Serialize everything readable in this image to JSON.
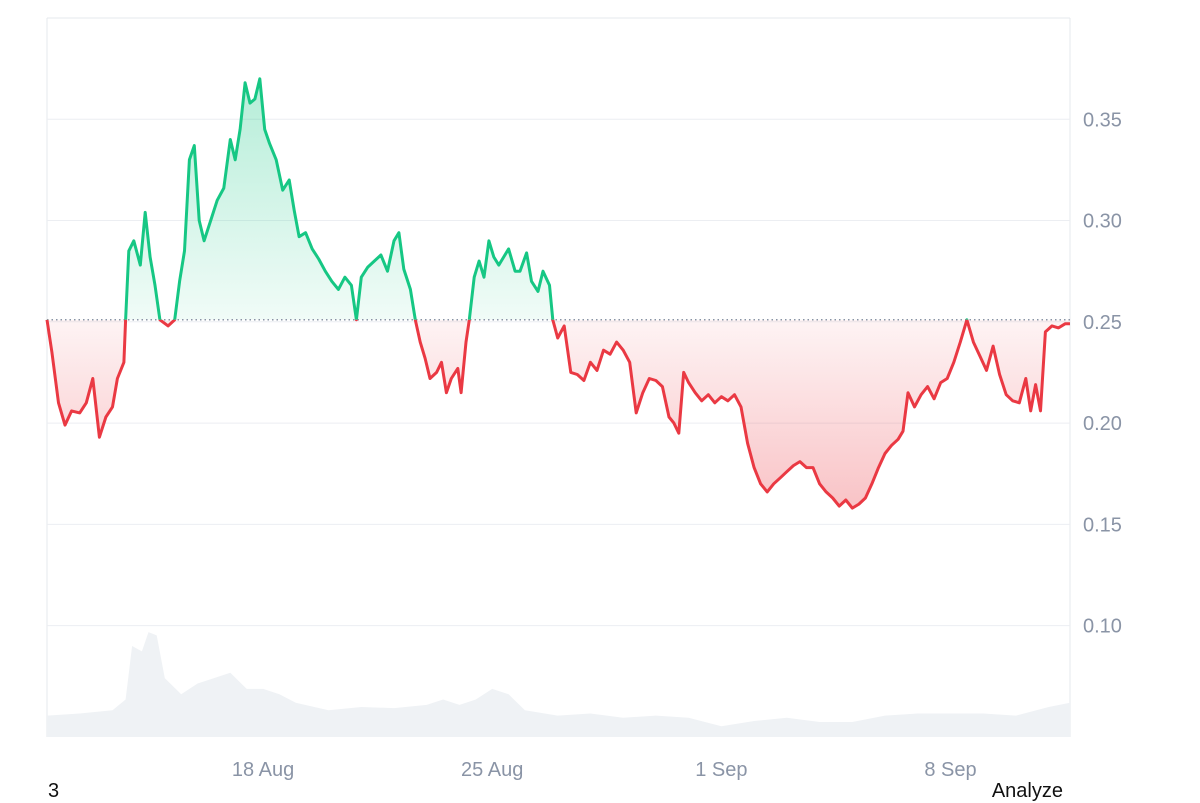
{
  "chart_data": {
    "type": "line",
    "title": "",
    "xlabel": "",
    "ylabel": "",
    "baseline": 0.251,
    "ylim": [
      0.045,
      0.4
    ],
    "x_ticks": [
      {
        "label": "18 Aug",
        "day": 18
      },
      {
        "label": "25 Aug",
        "day": 25
      },
      {
        "label": "1 Sep",
        "day": 32
      },
      {
        "label": "8 Sep",
        "day": 39
      }
    ],
    "x_range_days": [
      11.4,
      42.65
    ],
    "y_ticks": [
      {
        "label": "0.35",
        "value": 0.35
      },
      {
        "label": "0.30",
        "value": 0.3
      },
      {
        "label": "0.25",
        "value": 0.25
      },
      {
        "label": "0.20",
        "value": 0.2
      },
      {
        "label": "0.15",
        "value": 0.15
      },
      {
        "label": "0.10",
        "value": 0.1
      }
    ],
    "series": [
      {
        "points": [
          [
            11.4,
            0.251
          ],
          [
            11.55,
            0.235
          ],
          [
            11.75,
            0.21
          ],
          [
            11.95,
            0.199
          ],
          [
            12.15,
            0.206
          ],
          [
            12.4,
            0.205
          ],
          [
            12.6,
            0.21
          ],
          [
            12.8,
            0.222
          ],
          [
            13.0,
            0.193
          ],
          [
            13.2,
            0.203
          ],
          [
            13.4,
            0.208
          ],
          [
            13.55,
            0.222
          ],
          [
            13.75,
            0.23
          ],
          [
            13.8,
            0.251
          ],
          [
            13.9,
            0.285
          ],
          [
            14.05,
            0.29
          ],
          [
            14.25,
            0.278
          ],
          [
            14.4,
            0.304
          ],
          [
            14.55,
            0.282
          ],
          [
            14.7,
            0.268
          ],
          [
            14.85,
            0.251
          ],
          [
            15.1,
            0.248
          ],
          [
            15.3,
            0.251
          ],
          [
            15.45,
            0.27
          ],
          [
            15.6,
            0.285
          ],
          [
            15.75,
            0.33
          ],
          [
            15.9,
            0.337
          ],
          [
            16.05,
            0.3
          ],
          [
            16.2,
            0.29
          ],
          [
            16.4,
            0.3
          ],
          [
            16.6,
            0.31
          ],
          [
            16.8,
            0.316
          ],
          [
            17.0,
            0.34
          ],
          [
            17.15,
            0.33
          ],
          [
            17.3,
            0.345
          ],
          [
            17.45,
            0.368
          ],
          [
            17.6,
            0.358
          ],
          [
            17.75,
            0.36
          ],
          [
            17.9,
            0.37
          ],
          [
            18.05,
            0.345
          ],
          [
            18.2,
            0.338
          ],
          [
            18.4,
            0.33
          ],
          [
            18.6,
            0.315
          ],
          [
            18.8,
            0.32
          ],
          [
            18.95,
            0.305
          ],
          [
            19.1,
            0.292
          ],
          [
            19.3,
            0.294
          ],
          [
            19.5,
            0.286
          ],
          [
            19.7,
            0.281
          ],
          [
            19.9,
            0.275
          ],
          [
            20.1,
            0.27
          ],
          [
            20.3,
            0.266
          ],
          [
            20.5,
            0.272
          ],
          [
            20.7,
            0.268
          ],
          [
            20.85,
            0.251
          ],
          [
            21.0,
            0.272
          ],
          [
            21.2,
            0.277
          ],
          [
            21.4,
            0.28
          ],
          [
            21.6,
            0.283
          ],
          [
            21.8,
            0.275
          ],
          [
            22.0,
            0.29
          ],
          [
            22.15,
            0.294
          ],
          [
            22.3,
            0.276
          ],
          [
            22.5,
            0.266
          ],
          [
            22.65,
            0.251
          ],
          [
            22.8,
            0.24
          ],
          [
            22.95,
            0.232
          ],
          [
            23.1,
            0.222
          ],
          [
            23.3,
            0.225
          ],
          [
            23.45,
            0.23
          ],
          [
            23.6,
            0.215
          ],
          [
            23.75,
            0.222
          ],
          [
            23.95,
            0.227
          ],
          [
            24.05,
            0.215
          ],
          [
            24.2,
            0.24
          ],
          [
            24.3,
            0.251
          ],
          [
            24.45,
            0.272
          ],
          [
            24.6,
            0.28
          ],
          [
            24.75,
            0.272
          ],
          [
            24.9,
            0.29
          ],
          [
            25.05,
            0.282
          ],
          [
            25.2,
            0.278
          ],
          [
            25.35,
            0.282
          ],
          [
            25.5,
            0.286
          ],
          [
            25.7,
            0.275
          ],
          [
            25.85,
            0.275
          ],
          [
            26.05,
            0.284
          ],
          [
            26.2,
            0.27
          ],
          [
            26.4,
            0.265
          ],
          [
            26.55,
            0.275
          ],
          [
            26.75,
            0.268
          ],
          [
            26.85,
            0.251
          ],
          [
            27.0,
            0.242
          ],
          [
            27.2,
            0.248
          ],
          [
            27.4,
            0.225
          ],
          [
            27.6,
            0.224
          ],
          [
            27.8,
            0.221
          ],
          [
            28.0,
            0.23
          ],
          [
            28.2,
            0.226
          ],
          [
            28.4,
            0.236
          ],
          [
            28.6,
            0.234
          ],
          [
            28.8,
            0.24
          ],
          [
            29.0,
            0.236
          ],
          [
            29.2,
            0.23
          ],
          [
            29.4,
            0.205
          ],
          [
            29.6,
            0.215
          ],
          [
            29.8,
            0.222
          ],
          [
            30.0,
            0.221
          ],
          [
            30.2,
            0.218
          ],
          [
            30.4,
            0.203
          ],
          [
            30.55,
            0.2
          ],
          [
            30.7,
            0.195
          ],
          [
            30.85,
            0.225
          ],
          [
            31.0,
            0.22
          ],
          [
            31.2,
            0.215
          ],
          [
            31.4,
            0.211
          ],
          [
            31.6,
            0.214
          ],
          [
            31.8,
            0.21
          ],
          [
            32.0,
            0.213
          ],
          [
            32.2,
            0.211
          ],
          [
            32.4,
            0.214
          ],
          [
            32.6,
            0.208
          ],
          [
            32.8,
            0.19
          ],
          [
            33.0,
            0.178
          ],
          [
            33.2,
            0.17
          ],
          [
            33.4,
            0.166
          ],
          [
            33.6,
            0.17
          ],
          [
            33.8,
            0.173
          ],
          [
            34.0,
            0.176
          ],
          [
            34.2,
            0.179
          ],
          [
            34.4,
            0.181
          ],
          [
            34.6,
            0.178
          ],
          [
            34.8,
            0.178
          ],
          [
            35.0,
            0.17
          ],
          [
            35.2,
            0.166
          ],
          [
            35.4,
            0.163
          ],
          [
            35.6,
            0.159
          ],
          [
            35.8,
            0.162
          ],
          [
            36.0,
            0.158
          ],
          [
            36.2,
            0.16
          ],
          [
            36.4,
            0.163
          ],
          [
            36.6,
            0.17
          ],
          [
            36.8,
            0.178
          ],
          [
            37.0,
            0.185
          ],
          [
            37.2,
            0.189
          ],
          [
            37.4,
            0.192
          ],
          [
            37.55,
            0.196
          ],
          [
            37.7,
            0.215
          ],
          [
            37.9,
            0.208
          ],
          [
            38.1,
            0.214
          ],
          [
            38.3,
            0.218
          ],
          [
            38.5,
            0.212
          ],
          [
            38.7,
            0.22
          ],
          [
            38.9,
            0.222
          ],
          [
            39.1,
            0.23
          ],
          [
            39.3,
            0.24
          ],
          [
            39.5,
            0.251
          ],
          [
            39.7,
            0.24
          ],
          [
            39.9,
            0.233
          ],
          [
            40.1,
            0.226
          ],
          [
            40.3,
            0.238
          ],
          [
            40.5,
            0.224
          ],
          [
            40.7,
            0.214
          ],
          [
            40.9,
            0.211
          ],
          [
            41.1,
            0.21
          ],
          [
            41.3,
            0.222
          ],
          [
            41.45,
            0.206
          ],
          [
            41.6,
            0.219
          ],
          [
            41.75,
            0.206
          ],
          [
            41.9,
            0.245
          ],
          [
            42.1,
            0.248
          ],
          [
            42.3,
            0.247
          ],
          [
            42.5,
            0.249
          ],
          [
            42.65,
            0.249
          ]
        ]
      }
    ],
    "volume": [
      [
        11.4,
        0.2
      ],
      [
        12.4,
        0.22
      ],
      [
        13.4,
        0.25
      ],
      [
        13.8,
        0.35
      ],
      [
        14.0,
        0.85
      ],
      [
        14.3,
        0.8
      ],
      [
        14.5,
        0.98
      ],
      [
        14.75,
        0.95
      ],
      [
        15.0,
        0.55
      ],
      [
        15.5,
        0.4
      ],
      [
        16.0,
        0.5
      ],
      [
        16.5,
        0.55
      ],
      [
        17.0,
        0.6
      ],
      [
        17.5,
        0.45
      ],
      [
        18.0,
        0.45
      ],
      [
        18.5,
        0.4
      ],
      [
        19.0,
        0.32
      ],
      [
        20.0,
        0.25
      ],
      [
        21.0,
        0.28
      ],
      [
        22.0,
        0.27
      ],
      [
        23.0,
        0.3
      ],
      [
        23.5,
        0.35
      ],
      [
        24.0,
        0.3
      ],
      [
        24.5,
        0.35
      ],
      [
        25.0,
        0.45
      ],
      [
        25.5,
        0.4
      ],
      [
        26.0,
        0.25
      ],
      [
        27.0,
        0.2
      ],
      [
        28.0,
        0.22
      ],
      [
        29.0,
        0.18
      ],
      [
        30.0,
        0.2
      ],
      [
        31.0,
        0.18
      ],
      [
        32.0,
        0.1
      ],
      [
        33.0,
        0.15
      ],
      [
        34.0,
        0.18
      ],
      [
        35.0,
        0.14
      ],
      [
        36.0,
        0.14
      ],
      [
        37.0,
        0.2
      ],
      [
        38.0,
        0.22
      ],
      [
        39.0,
        0.22
      ],
      [
        40.0,
        0.22
      ],
      [
        41.0,
        0.2
      ],
      [
        42.0,
        0.28
      ],
      [
        42.65,
        0.32
      ]
    ],
    "colors": {
      "up": "#16c784",
      "down": "#ea3943",
      "grid": "#eceef2",
      "volume": "#eff2f5",
      "baseline_dots": "#8a94a6"
    },
    "grid": true
  },
  "footer": {
    "left_text": "3",
    "right_text": "Analyze"
  }
}
